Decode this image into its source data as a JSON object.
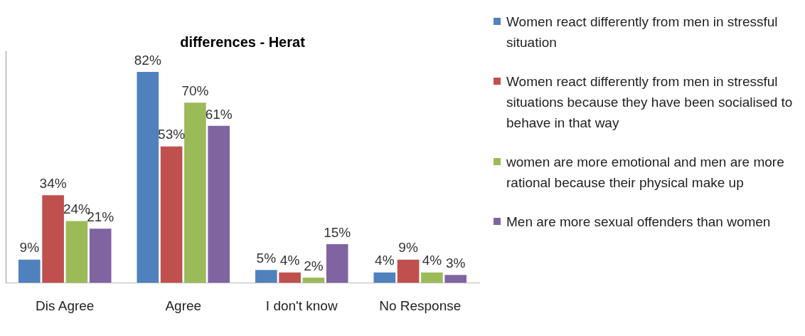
{
  "chart_data": {
    "type": "bar",
    "title": "differences - Herat",
    "categories": [
      "Dis Agree",
      "Agree",
      "I don't know",
      "No Response"
    ],
    "legend": "right",
    "grid": false,
    "series": [
      {
        "name": "Women react differently from men in stressful situation",
        "color": "#4f81bd",
        "values": [
          9,
          82,
          5,
          4
        ],
        "value_labels": [
          "9%",
          "82%",
          "5%",
          "4%"
        ]
      },
      {
        "name": "Women react differently from men in stressful situations because they have been socialised to behave in that way",
        "color": "#c0504d",
        "values": [
          34,
          53,
          4,
          9
        ],
        "value_labels": [
          "34%",
          "53%",
          "4%",
          "9%"
        ]
      },
      {
        "name": "women are more emotional and men are more rational because their physical make up",
        "color": "#9bbb59",
        "values": [
          24,
          70,
          2,
          4
        ],
        "value_labels": [
          "24%",
          "70%",
          "2%",
          "4%"
        ]
      },
      {
        "name": "Men are more sexual offenders than women",
        "color": "#8064a2",
        "values": [
          21,
          61,
          15,
          3
        ],
        "value_labels": [
          "21%",
          "61%",
          "15%",
          "3%"
        ]
      }
    ]
  }
}
